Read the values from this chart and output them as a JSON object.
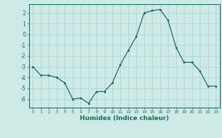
{
  "x": [
    0,
    1,
    2,
    3,
    4,
    5,
    6,
    7,
    8,
    9,
    10,
    11,
    12,
    13,
    14,
    15,
    16,
    17,
    18,
    19,
    20,
    21,
    22,
    23
  ],
  "y": [
    -3.0,
    -3.8,
    -3.8,
    -4.0,
    -4.5,
    -6.0,
    -5.9,
    -6.4,
    -5.3,
    -5.3,
    -4.5,
    -2.8,
    -1.5,
    -0.2,
    2.0,
    2.2,
    2.3,
    1.3,
    -1.2,
    -2.6,
    -2.6,
    -3.4,
    -4.8,
    -4.8
  ],
  "xlabel": "Humidex (Indice chaleur)",
  "ylim": [
    -6.8,
    2.8
  ],
  "xlim": [
    -0.5,
    23.5
  ],
  "yticks": [
    2,
    1,
    0,
    -1,
    -2,
    -3,
    -4,
    -5,
    -6
  ],
  "xticks": [
    0,
    1,
    2,
    3,
    4,
    5,
    6,
    7,
    8,
    9,
    10,
    11,
    12,
    13,
    14,
    15,
    16,
    17,
    18,
    19,
    20,
    21,
    22,
    23
  ],
  "line_color": "#1a6b5a",
  "marker_color": "#1a6b5a",
  "bg_color": "#ceeae7",
  "grid_color": "#aad4d0",
  "spine_color": "#1a6b5a"
}
